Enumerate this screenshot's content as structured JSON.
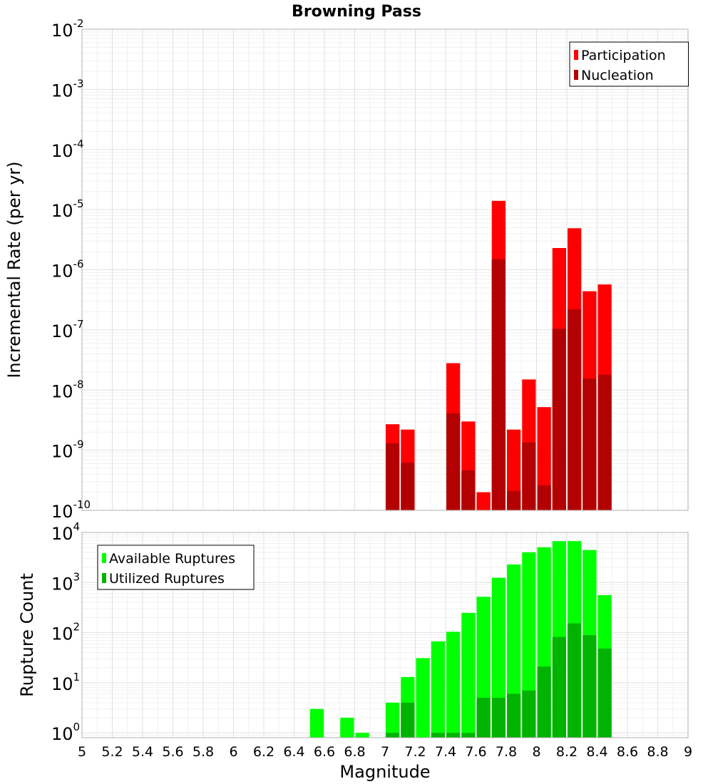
{
  "chart_data": [
    {
      "type": "bar",
      "title": "Browning Pass",
      "xlabel": "",
      "ylabel": "Incremental Rate (per yr)",
      "yscale": "log",
      "ylim": [
        1e-10,
        0.01
      ],
      "xlim": [
        5,
        9
      ],
      "bin_width": 0.1,
      "legend": "top-right",
      "grid": true,
      "ytick_bases": [
        "10",
        "10",
        "10",
        "10",
        "10",
        "10",
        "10",
        "10",
        "10"
      ],
      "ytick_exponents": [
        "-10",
        "-9",
        "-8",
        "-7",
        "-6",
        "-5",
        "-4",
        "-3",
        "-2"
      ],
      "x": [
        7.05,
        7.15,
        7.45,
        7.55,
        7.65,
        7.75,
        7.85,
        7.95,
        8.05,
        8.15,
        8.25,
        8.35,
        8.45
      ],
      "series": [
        {
          "name": "Participation",
          "color": "#ff0000",
          "values": [
            2.7e-09,
            2.2e-09,
            2.8e-08,
            3e-09,
            2e-10,
            1.4e-05,
            2.2e-09,
            1.5e-08,
            5.2e-09,
            2.3e-06,
            4.9e-06,
            4.4e-07,
            5.7e-07
          ]
        },
        {
          "name": "Nucleation",
          "color": "#b30000",
          "values": [
            1.3e-09,
            6.2e-10,
            4.1e-09,
            4.6e-10,
            1e-10,
            1.5e-06,
            2.1e-10,
            1.35e-09,
            2.6e-10,
            1.04e-07,
            2.2e-07,
            1.55e-08,
            1.8e-08
          ]
        }
      ]
    },
    {
      "type": "bar",
      "title": "",
      "xlabel": "Magnitude",
      "ylabel": "Rupture Count",
      "yscale": "log",
      "ylim": [
        0.8,
        10000
      ],
      "xlim": [
        5,
        9
      ],
      "bin_width": 0.1,
      "legend": "top-left",
      "grid": true,
      "ytick_bases": [
        "10",
        "10",
        "10",
        "10",
        "10"
      ],
      "ytick_exponents": [
        "0",
        "1",
        "2",
        "3",
        "4"
      ],
      "xtick_labels": [
        "5",
        "5.2",
        "5.4",
        "5.6",
        "5.8",
        "6",
        "6.2",
        "6.4",
        "6.6",
        "6.8",
        "7",
        "7.2",
        "7.4",
        "7.6",
        "7.8",
        "8",
        "8.2",
        "8.4",
        "8.6",
        "8.8",
        "9"
      ],
      "x": [
        6.55,
        6.75,
        6.85,
        7.05,
        7.15,
        7.25,
        7.35,
        7.45,
        7.55,
        7.65,
        7.75,
        7.85,
        7.95,
        8.05,
        8.15,
        8.25,
        8.35,
        8.45
      ],
      "series": [
        {
          "name": "Available Ruptures",
          "color": "#00ff00",
          "values": [
            3,
            2,
            1,
            4,
            13,
            31,
            67,
            104,
            248,
            520,
            1243,
            2291,
            4006,
            5060,
            6700,
            6700,
            4461,
            560
          ]
        },
        {
          "name": "Utilized Ruptures",
          "color": "#00b300",
          "values": [
            0,
            0,
            0,
            1,
            4,
            0,
            1,
            1,
            1,
            5,
            5,
            6,
            7,
            21,
            82,
            153,
            89,
            48
          ]
        }
      ]
    }
  ]
}
